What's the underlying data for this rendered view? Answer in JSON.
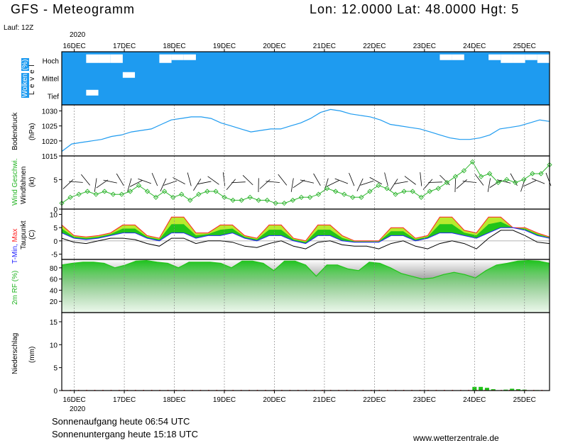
{
  "header": {
    "title": "GFS - Meteogramm",
    "location": "Lon: 12.0000 Lat: 48.0000 Hgt: 5",
    "run": "Lauf: 12Z"
  },
  "date_axis": {
    "year": "2020",
    "days": [
      "16DEC",
      "17DEC",
      "18DEC",
      "19DEC",
      "20DEC",
      "21DEC",
      "22DEC",
      "23DEC",
      "24DEC",
      "25DEC"
    ]
  },
  "footer": {
    "sunrise": "Sonnenaufgang heute 06:54 UTC",
    "sunset": "Sonnenuntergang heute 15:18 UTC",
    "site": "www.wetterzentrale.de"
  },
  "colors": {
    "cloud": "#1e9bf0",
    "pressure": "#1e9bf0",
    "wind": "#2db52d",
    "temp_fill": "#22c41a",
    "temp_top": "#b8ea2e",
    "rh": "#22c41a",
    "precip": "#22c41a",
    "tmax": "#ff2020",
    "tmin": "#2020ff"
  },
  "chart_data": [
    {
      "type": "heatmap",
      "id": "clouds",
      "ylabel_parts": [
        "Wolken",
        "(%)"
      ],
      "side_label": "L e v e l",
      "levels": [
        "Hoch",
        "Mittel",
        "Tief"
      ],
      "x_start": "2020-12-15T18:00",
      "x_end": "2020-12-25T12:00",
      "note": "mostly overcast at all levels",
      "high_cover": [
        100,
        100,
        40,
        40,
        40,
        100,
        100,
        100,
        40,
        60,
        60,
        100,
        100,
        100,
        100,
        100,
        100,
        100,
        100,
        100,
        100,
        100,
        100,
        100,
        100,
        100,
        100,
        100,
        100,
        100,
        100,
        60,
        60,
        100,
        100,
        60,
        40,
        40,
        60,
        40
      ],
      "mid_cover": [
        100,
        100,
        100,
        100,
        100,
        60,
        100,
        100,
        100,
        100,
        100,
        100,
        100,
        100,
        100,
        100,
        100,
        100,
        100,
        100,
        100,
        100,
        100,
        100,
        100,
        100,
        100,
        100,
        100,
        100,
        100,
        100,
        100,
        100,
        100,
        100,
        100,
        100,
        100,
        100
      ],
      "low_cover": [
        100,
        100,
        60,
        100,
        100,
        100,
        100,
        100,
        100,
        100,
        100,
        100,
        100,
        100,
        100,
        100,
        100,
        100,
        100,
        100,
        100,
        100,
        100,
        100,
        100,
        100,
        100,
        100,
        100,
        100,
        100,
        100,
        100,
        100,
        100,
        100,
        100,
        100,
        100,
        100
      ]
    },
    {
      "type": "line",
      "id": "pressure",
      "ylabel_parts": [
        "Bodendruck",
        "(hPa)"
      ],
      "yticks": [
        1015,
        1020,
        1025,
        1030
      ],
      "ylim": [
        1015,
        1032
      ],
      "x_start": "2020-12-15T18:00",
      "x_end": "2020-12-25T12:00",
      "values": [
        1016.5,
        1019,
        1019.5,
        1020,
        1020.5,
        1021.5,
        1022,
        1023,
        1023.5,
        1024,
        1025.5,
        1027,
        1027.5,
        1028,
        1028,
        1027.5,
        1026,
        1025,
        1024,
        1023,
        1023.5,
        1024,
        1024,
        1025,
        1026,
        1027.5,
        1029.5,
        1030.5,
        1030,
        1029,
        1028.5,
        1028,
        1027,
        1025.5,
        1025,
        1024.5,
        1024,
        1023,
        1022,
        1021,
        1020.5,
        1020.5,
        1021,
        1022,
        1024,
        1024.5,
        1025,
        1026,
        1027,
        1026.5
      ]
    },
    {
      "type": "line",
      "id": "wind",
      "ylabel_parts": [
        "Wind Geschwi.",
        "Windfahnen",
        "(kt)"
      ],
      "yticks": [
        0,
        5
      ],
      "ylim": [
        0,
        9
      ],
      "x_start": "2020-12-15T18:00",
      "x_end": "2020-12-25T12:00",
      "values": [
        1,
        2,
        2.5,
        3,
        2.5,
        3,
        2.5,
        2.5,
        3,
        4,
        3,
        2,
        3,
        2,
        2.5,
        1.5,
        2.5,
        3,
        3,
        2,
        1.5,
        1.5,
        2,
        1.5,
        1.5,
        1,
        1,
        1.5,
        2,
        2,
        2.5,
        3.5,
        3,
        2.5,
        2,
        2,
        3,
        4,
        3.5,
        2.5,
        3,
        3,
        2,
        3,
        3.5,
        4.5,
        5.5,
        6.5,
        8,
        5.5,
        6,
        4.5,
        5,
        4.5,
        5,
        6,
        6,
        7.5
      ]
    },
    {
      "type": "area",
      "id": "temperature",
      "ylabel_parts": [
        "T-Min,",
        "Max",
        "(C)",
        "Taupunkt"
      ],
      "yticks": [
        -5,
        0,
        5,
        10
      ],
      "ylim": [
        -7,
        12
      ],
      "x_start": "2020-12-15T18:00",
      "x_end": "2020-12-25T12:00",
      "series": [
        {
          "name": "T-Max",
          "values": [
            6,
            2,
            1.5,
            2,
            3,
            6,
            6,
            2,
            1,
            9,
            9,
            3,
            3,
            6,
            6,
            2,
            1,
            6,
            6,
            1,
            0,
            6,
            6,
            2,
            0,
            0,
            0,
            5,
            5,
            1,
            2,
            9,
            9,
            4,
            3,
            9,
            9,
            5,
            5,
            3,
            1.5
          ]
        },
        {
          "name": "T-Min",
          "values": [
            3,
            1,
            0.5,
            1,
            2,
            3,
            3,
            1,
            0,
            3,
            3,
            1,
            2,
            2,
            3,
            1,
            0,
            2,
            2,
            0,
            -1,
            2,
            2,
            0,
            -0.5,
            -0.5,
            -0.5,
            2,
            2,
            0,
            1,
            3,
            3,
            2,
            1,
            3,
            5,
            5,
            4,
            2,
            1
          ]
        },
        {
          "name": "Taupunkt",
          "values": [
            1,
            -0.5,
            -1,
            0,
            1,
            1,
            0.5,
            -1,
            -2,
            1,
            1,
            -1,
            0,
            0,
            -0.5,
            -2,
            -2.5,
            -1,
            0,
            -2,
            -3,
            -0.5,
            0,
            -1.5,
            -2,
            -2,
            -3,
            -1,
            0,
            -2,
            -3,
            -1,
            0,
            -1,
            -3,
            1,
            4,
            4,
            2,
            -0.5,
            -1
          ]
        }
      ]
    },
    {
      "type": "area",
      "id": "humidity",
      "ylabel_parts": [
        "2m RF",
        "(%)"
      ],
      "yticks": [
        20,
        40,
        60,
        80
      ],
      "ylim": [
        0,
        95
      ],
      "x_start": "2020-12-15T18:00",
      "x_end": "2020-12-25T12:00",
      "values": [
        85,
        88,
        90,
        90,
        88,
        80,
        85,
        92,
        93,
        90,
        88,
        80,
        90,
        90,
        90,
        88,
        80,
        92,
        92,
        88,
        75,
        92,
        92,
        85,
        65,
        85,
        85,
        78,
        75,
        90,
        88,
        80,
        70,
        65,
        60,
        62,
        68,
        72,
        68,
        62,
        75,
        85,
        88,
        92,
        93,
        92,
        88
      ]
    },
    {
      "type": "bar",
      "id": "precip",
      "ylabel_parts": [
        "Niederschlag",
        "(mm)"
      ],
      "yticks": [
        0,
        5,
        10,
        15
      ],
      "ylim": [
        0,
        17
      ],
      "x_start": "2020-12-15T18:00",
      "x_end": "2020-12-25T12:00",
      "bars": [
        {
          "t": "2020-12-24T00:00",
          "value": 0.8
        },
        {
          "t": "2020-12-24T03:00",
          "value": 0.8
        },
        {
          "t": "2020-12-24T06:00",
          "value": 0.6
        },
        {
          "t": "2020-12-24T09:00",
          "value": 0.3
        },
        {
          "t": "2020-12-24T15:00",
          "value": 0.2
        },
        {
          "t": "2020-12-24T18:00",
          "value": 0.4
        },
        {
          "t": "2020-12-24T21:00",
          "value": 0.3
        },
        {
          "t": "2020-12-25T00:00",
          "value": 0.2
        },
        {
          "t": "2020-12-25T06:00",
          "value": 0.1
        }
      ]
    }
  ]
}
